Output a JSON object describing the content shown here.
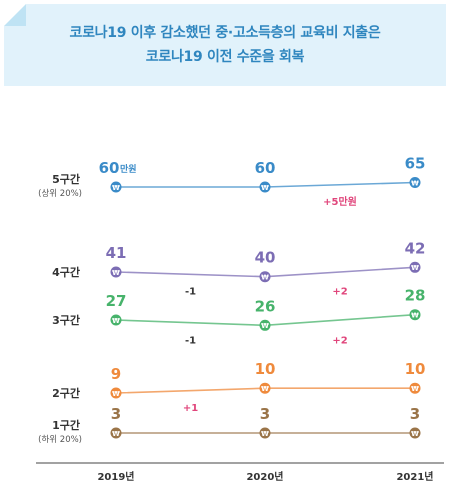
{
  "header": {
    "line1": "코로나19 이후 감소했던 중·고소득층의 교육비 지출은",
    "line2": "코로나19 이전 수준을 회복"
  },
  "chart_data": {
    "type": "line",
    "title": "코로나19 이후 감소했던 중·고소득층의 교육비 지출은 코로나19 이전 수준을 회복",
    "x": [
      "2019년",
      "2020년",
      "2021년"
    ],
    "unit_label": "만원",
    "marker_symbol": "₩",
    "series": [
      {
        "name": "5구간",
        "sub": "(상위 20%)",
        "values": [
          60,
          60,
          65
        ],
        "color": "#3a8bc8",
        "deltas": [
          {
            "text": "+5만원",
            "between": [
              1,
              2
            ],
            "color": "#e0457b"
          }
        ]
      },
      {
        "name": "4구간",
        "sub": "",
        "values": [
          41,
          40,
          42
        ],
        "color": "#7c6db4",
        "deltas": [
          {
            "text": "-1",
            "between": [
              0,
              1
            ],
            "color": "#333333"
          },
          {
            "text": "+2",
            "between": [
              1,
              2
            ],
            "color": "#e0457b"
          }
        ]
      },
      {
        "name": "3구간",
        "sub": "",
        "values": [
          27,
          26,
          28
        ],
        "color": "#47b36b",
        "deltas": [
          {
            "text": "-1",
            "between": [
              0,
              1
            ],
            "color": "#333333"
          },
          {
            "text": "+2",
            "between": [
              1,
              2
            ],
            "color": "#e0457b"
          }
        ]
      },
      {
        "name": "2구간",
        "sub": "",
        "values": [
          9,
          10,
          10
        ],
        "color": "#ef8a3c",
        "deltas": [
          {
            "text": "+1",
            "between": [
              0,
              1
            ],
            "color": "#e0457b"
          }
        ]
      },
      {
        "name": "1구간",
        "sub": "(하위 20%)",
        "values": [
          3,
          3,
          3
        ],
        "color": "#9a7448",
        "deltas": []
      }
    ],
    "grid": false,
    "legend": "row labels on left"
  }
}
